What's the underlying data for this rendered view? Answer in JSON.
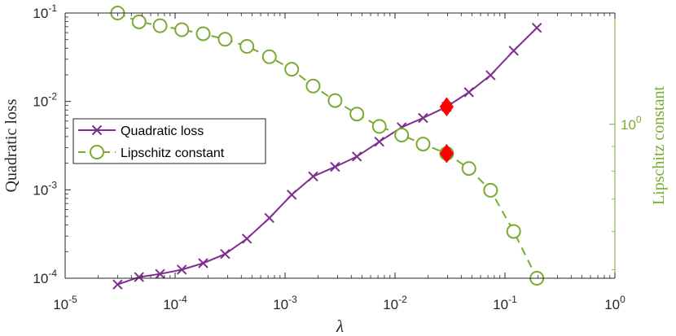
{
  "chart_data": {
    "type": "line",
    "title": "",
    "xlabel": "λ",
    "ylabel_left": "Quadratic loss",
    "ylabel_right": "Lipschitz constant",
    "xscale": "log",
    "xlim": [
      1e-05,
      1
    ],
    "ylim_left": [
      0.0001,
      0.1
    ],
    "ylim_right": [
      0.48,
      1.7
    ],
    "x_ticks": [
      {
        "base": "10",
        "exp": "-5"
      },
      {
        "base": "10",
        "exp": "-4"
      },
      {
        "base": "10",
        "exp": "-3"
      },
      {
        "base": "10",
        "exp": "-2"
      },
      {
        "base": "10",
        "exp": "-1"
      },
      {
        "base": "10",
        "exp": "0"
      }
    ],
    "y_ticks_left": [
      {
        "base": "10",
        "exp": "-4"
      },
      {
        "base": "10",
        "exp": "-3"
      },
      {
        "base": "10",
        "exp": "-2"
      },
      {
        "base": "10",
        "exp": "-1"
      }
    ],
    "y_ticks_right": [
      {
        "base": "10",
        "exp": "0"
      }
    ],
    "legend": {
      "position": "center-left",
      "entries": [
        "Quadratic loss",
        "Lipschitz constant"
      ]
    },
    "colors": {
      "loss": "#7e2f8e",
      "lipschitz": "#77ac30",
      "highlight": "#ff0000",
      "axis": "#262626"
    },
    "series": [
      {
        "name": "Quadratic loss",
        "axis": "left",
        "marker": "x",
        "style": "solid",
        "x": [
          3e-05,
          4.7e-05,
          7.3e-05,
          0.000115,
          0.00018,
          0.000285,
          0.00045,
          0.00072,
          0.00115,
          0.0018,
          0.00285,
          0.0045,
          0.0072,
          0.0115,
          0.018,
          0.0295,
          0.047,
          0.074,
          0.12,
          0.195
        ],
        "values": [
          8.5e-05,
          0.000103,
          0.000112,
          0.000125,
          0.000148,
          0.000188,
          0.00028,
          0.00048,
          0.00088,
          0.00142,
          0.00182,
          0.00238,
          0.0035,
          0.0051,
          0.0065,
          0.0087,
          0.0127,
          0.0198,
          0.0375,
          0.068
        ]
      },
      {
        "name": "Lipschitz constant",
        "axis": "right",
        "marker": "o",
        "style": "dashed",
        "x": [
          3e-05,
          4.7e-05,
          7.3e-05,
          0.000115,
          0.00018,
          0.000285,
          0.00045,
          0.00072,
          0.00115,
          0.0018,
          0.00285,
          0.0045,
          0.0072,
          0.0115,
          0.018,
          0.0295,
          0.047,
          0.074,
          0.12,
          0.195
        ],
        "values": [
          1.7,
          1.63,
          1.6,
          1.57,
          1.54,
          1.5,
          1.45,
          1.38,
          1.3,
          1.2,
          1.12,
          1.05,
          0.99,
          0.95,
          0.91,
          0.87,
          0.81,
          0.73,
          0.6,
          0.48
        ]
      }
    ],
    "highlights": [
      {
        "axis": "left",
        "x": 0.0295,
        "value": 0.0087
      },
      {
        "axis": "right",
        "x": 0.0295,
        "value": 0.87
      }
    ]
  }
}
